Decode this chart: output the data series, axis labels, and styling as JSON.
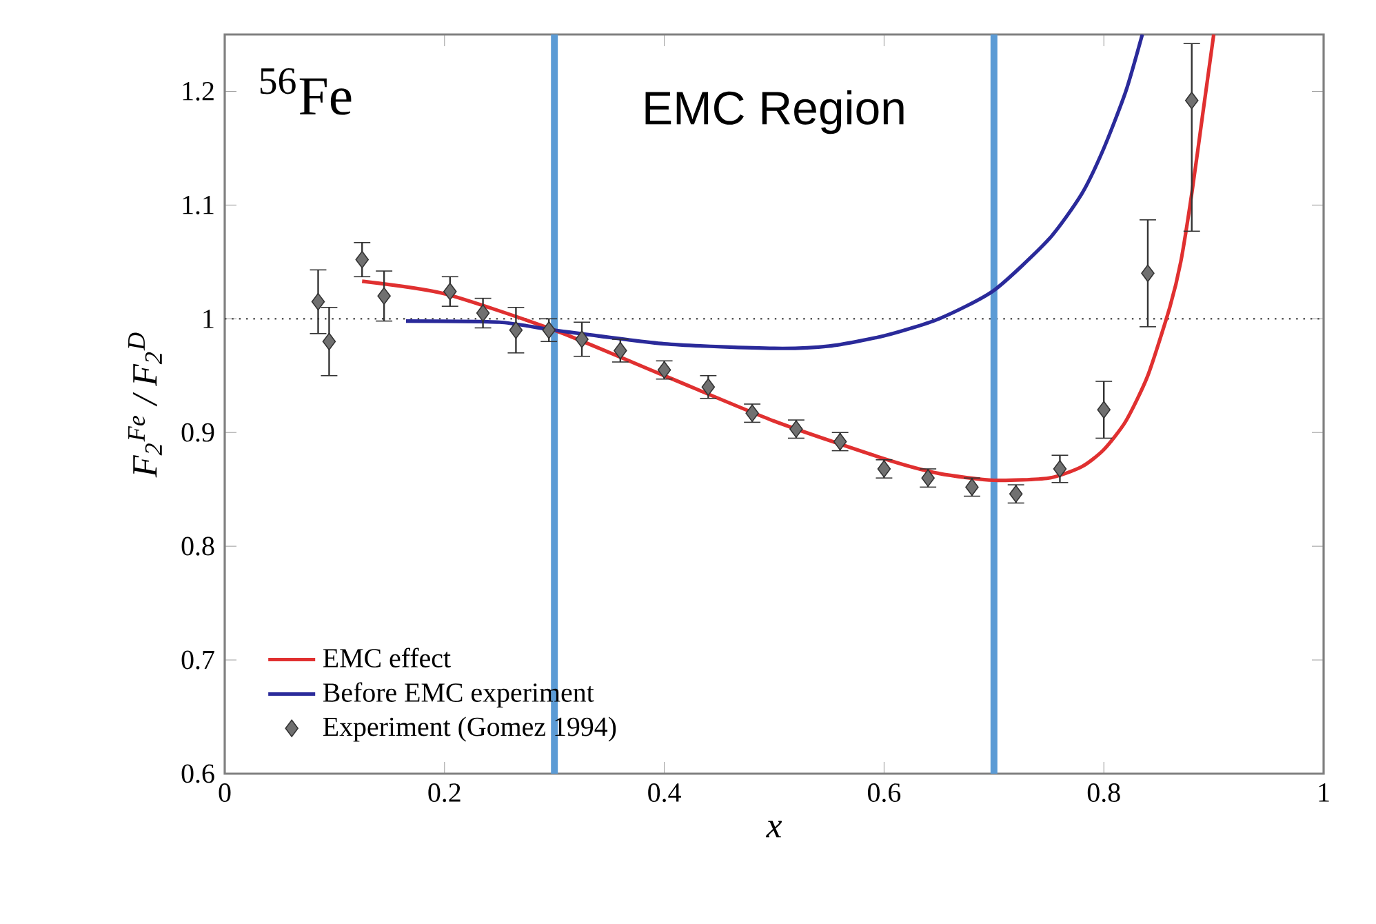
{
  "chart_data": {
    "type": "scatter",
    "xlabel": "x",
    "ylabel": "F$_{2}$$^{Fe}$ / F$_{2}$$^{D}$",
    "annotations": [
      "$^{56}$Fe",
      "EMC Region"
    ],
    "xlim": [
      0,
      1
    ],
    "ylim": [
      0.6,
      1.25
    ],
    "xticks": [
      0,
      0.2,
      0.4,
      0.6,
      0.8,
      1
    ],
    "yticks": [
      0.6,
      0.7,
      0.8,
      0.9,
      1,
      1.1,
      1.2
    ],
    "legend": "bottom left",
    "grid": false,
    "ref_lines": [
      {
        "axis": "y",
        "value": 1,
        "color": "#555555",
        "line_style": "dotted"
      },
      {
        "axis": "x",
        "value": 0.3,
        "color": "#5b9bd5",
        "line_style": "solid"
      },
      {
        "axis": "x",
        "value": 0.7,
        "color": "#5b9bd5",
        "line_style": "solid"
      }
    ],
    "series": [
      {
        "name": "EMC effect",
        "type": "line",
        "color": "#e03030",
        "marker": "none",
        "line_style": "solid",
        "x": [
          0.125,
          0.2,
          0.3,
          0.4,
          0.5,
          0.6,
          0.65,
          0.7,
          0.75,
          0.78,
          0.8,
          0.82,
          0.84,
          0.86,
          0.87,
          0.88,
          0.89,
          0.9
        ],
        "values": [
          1.033,
          1.022,
          0.99,
          0.95,
          0.91,
          0.877,
          0.864,
          0.858,
          0.86,
          0.87,
          0.885,
          0.91,
          0.95,
          1.01,
          1.05,
          1.11,
          1.18,
          1.25
        ]
      },
      {
        "name": "Before EMC experiment",
        "type": "line",
        "color": "#2a2a9a",
        "marker": "none",
        "line_style": "solid",
        "x": [
          0.165,
          0.25,
          0.3,
          0.4,
          0.5,
          0.55,
          0.6,
          0.65,
          0.7,
          0.75,
          0.78,
          0.8,
          0.82,
          0.835
        ],
        "values": [
          0.998,
          0.997,
          0.99,
          0.978,
          0.974,
          0.976,
          0.985,
          1.0,
          1.025,
          1.07,
          1.11,
          1.15,
          1.2,
          1.25
        ]
      },
      {
        "name": "Experiment (Gomez 1994)",
        "color": "#333333",
        "marker": "diamond",
        "x": [
          0.085,
          0.095,
          0.125,
          0.145,
          0.205,
          0.235,
          0.265,
          0.295,
          0.325,
          0.36,
          0.4,
          0.44,
          0.48,
          0.52,
          0.56,
          0.6,
          0.64,
          0.68,
          0.72,
          0.76,
          0.8,
          0.84,
          0.88
        ],
        "values": [
          1.015,
          0.98,
          1.052,
          1.02,
          1.024,
          1.005,
          0.99,
          0.99,
          0.982,
          0.972,
          0.955,
          0.94,
          0.917,
          0.903,
          0.892,
          0.868,
          0.86,
          0.852,
          0.846,
          0.868,
          0.92,
          1.04,
          1.192
        ],
        "errors": [
          0.028,
          0.03,
          0.015,
          0.022,
          0.013,
          0.013,
          0.02,
          0.01,
          0.015,
          0.01,
          0.008,
          0.01,
          0.008,
          0.008,
          0.008,
          0.008,
          0.008,
          0.008,
          0.008,
          0.012,
          0.025,
          0.047,
          [
            1.077,
            1.242
          ]
        ]
      }
    ]
  }
}
